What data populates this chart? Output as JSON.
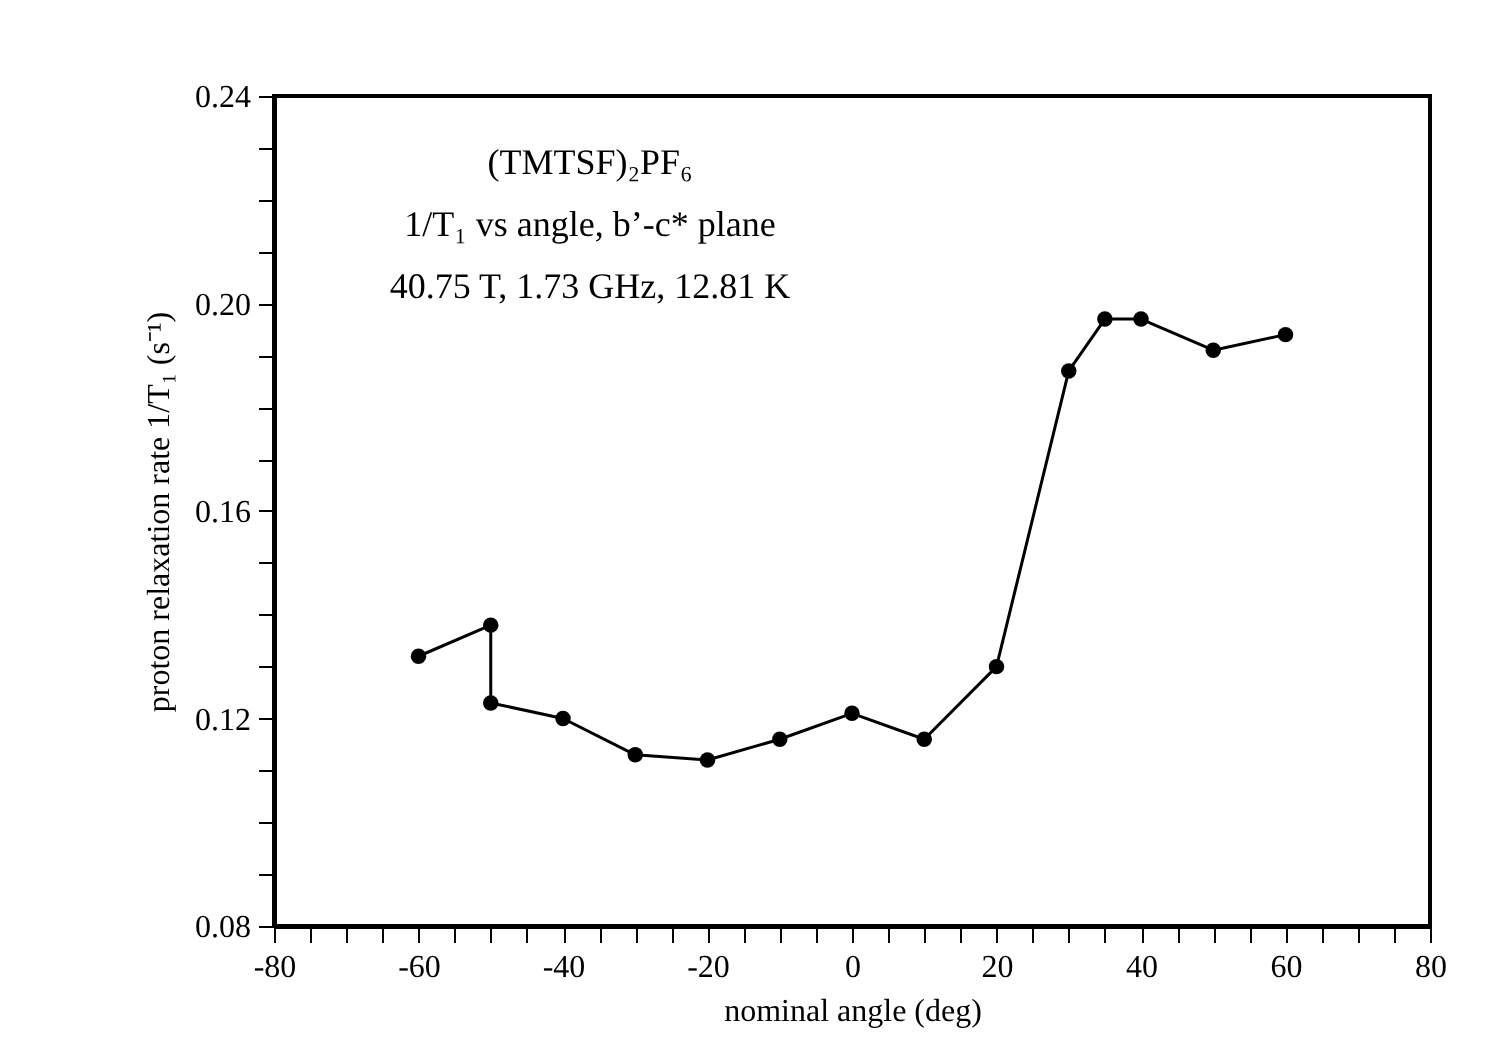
{
  "chart_data": {
    "type": "line",
    "xlabel": "nominal angle (deg)",
    "ylabel": "proton relaxation rate 1/T₁ (s⁻¹)",
    "annotations": [
      "(TMTSF)₂PF₆",
      "1/T₁ vs angle, b’-c* plane",
      "40.75 T, 1.73 GHz, 12.81 K"
    ],
    "x": [
      -60,
      -50,
      -50,
      -40,
      -30,
      -20,
      -10,
      0,
      10,
      20,
      30,
      35,
      40,
      50,
      60
    ],
    "series": [
      {
        "color": "#000000",
        "values": [
          0.132,
          0.138,
          0.123,
          0.12,
          0.113,
          0.112,
          0.116,
          0.121,
          0.116,
          0.13,
          0.187,
          0.197,
          0.197,
          0.191,
          0.194
        ]
      }
    ],
    "marker": "circle",
    "line_style": "solid",
    "grid": false,
    "xlim": [
      -80,
      80
    ],
    "ylim": [
      0.08,
      0.24
    ],
    "xticks": [
      -80,
      {
        "value": -75,
        "label": null
      },
      {
        "value": -70,
        "label": null
      },
      {
        "value": -65,
        "label": null
      },
      -60,
      {
        "value": -55,
        "label": null
      },
      {
        "value": -50,
        "label": null
      },
      {
        "value": -45,
        "label": null
      },
      -40,
      {
        "value": -35,
        "label": null
      },
      {
        "value": -30,
        "label": null
      },
      {
        "value": -25,
        "label": null
      },
      -20,
      {
        "value": -15,
        "label": null
      },
      {
        "value": -10,
        "label": null
      },
      {
        "value": -5,
        "label": null
      },
      0,
      {
        "value": 5,
        "label": null
      },
      {
        "value": 10,
        "label": null
      },
      {
        "value": 15,
        "label": null
      },
      20,
      {
        "value": 25,
        "label": null
      },
      {
        "value": 30,
        "label": null
      },
      {
        "value": 35,
        "label": null
      },
      40,
      {
        "value": 45,
        "label": null
      },
      {
        "value": 50,
        "label": null
      },
      {
        "value": 55,
        "label": null
      },
      60,
      {
        "value": 65,
        "label": null
      },
      {
        "value": 70,
        "label": null
      },
      {
        "value": 75,
        "label": null
      },
      80
    ],
    "yticks": [
      0.08,
      {
        "value": 0.09,
        "label": null
      },
      {
        "value": 0.1,
        "label": null
      },
      {
        "value": 0.11,
        "label": null
      },
      0.12,
      {
        "value": 0.13,
        "label": null
      },
      {
        "value": 0.14,
        "label": null
      },
      {
        "value": 0.15,
        "label": null
      },
      0.16,
      {
        "value": 0.17,
        "label": null
      },
      {
        "value": 0.18,
        "label": null
      },
      {
        "value": 0.19,
        "label": null
      },
      {
        "value": 0.2,
        "label": "0.20"
      },
      {
        "value": 0.21,
        "label": null
      },
      {
        "value": 0.22,
        "label": null
      },
      {
        "value": 0.23,
        "label": null
      },
      0.24
    ]
  }
}
